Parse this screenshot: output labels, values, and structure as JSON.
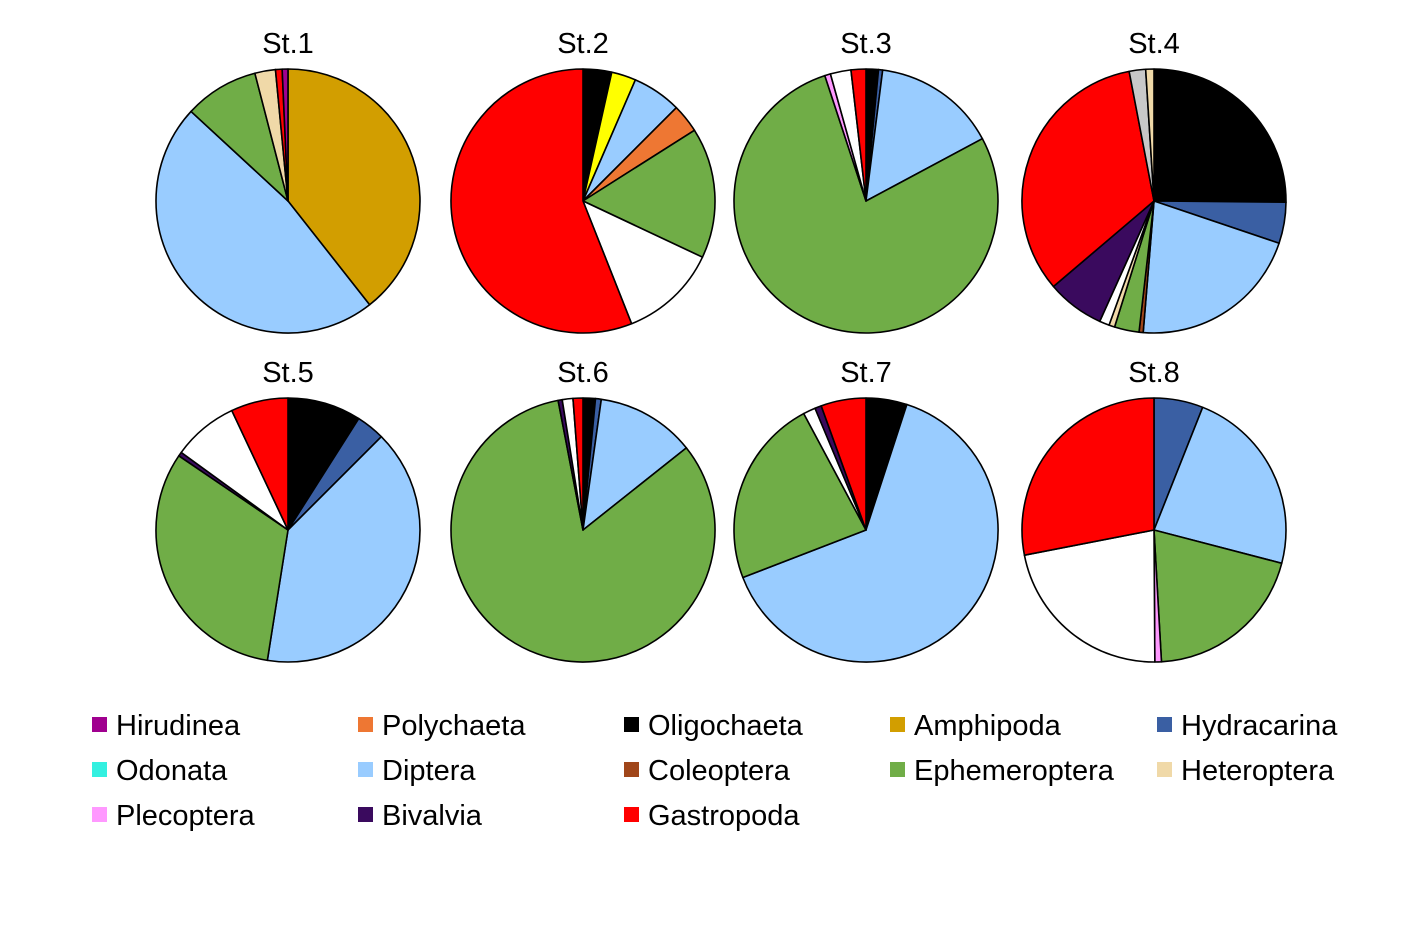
{
  "chart_data": {
    "type": "pie",
    "legend_placement": "bottom",
    "categories": [
      {
        "name": "Hirudinea",
        "color": "#a0008f"
      },
      {
        "name": "Polychaeta",
        "color": "#ee7733"
      },
      {
        "name": "Oligochaeta",
        "color": "#000000"
      },
      {
        "name": "Amphipoda",
        "color": "#d29e00"
      },
      {
        "name": "Hydracarina",
        "color": "#3a5fa3"
      },
      {
        "name": "Odonata",
        "color": "#33f0e0"
      },
      {
        "name": "Diptera",
        "color": "#99ccff"
      },
      {
        "name": "Coleoptera",
        "color": "#a0461a"
      },
      {
        "name": "Ephemeroptera",
        "color": "#70ad47"
      },
      {
        "name": "Heteroptera",
        "color": "#f0d9a8"
      },
      {
        "name": "Plecoptera",
        "color": "#ff99ff"
      },
      {
        "name": "Bivalvia",
        "color": "#3a0a5e"
      },
      {
        "name": "Gastropoda",
        "color": "#ff0000"
      }
    ],
    "other_slices": [
      {
        "key": "white",
        "color": "#ffffff"
      },
      {
        "key": "gray",
        "color": "#c8c8c8"
      }
    ],
    "pies": [
      {
        "title": "St.1",
        "slices": [
          {
            "cat": "Amphipoda",
            "value": 39
          },
          {
            "cat": "Diptera",
            "value": 47
          },
          {
            "cat": "Ephemeroptera",
            "value": 9
          },
          {
            "cat": "Heteroptera",
            "value": 2.5
          },
          {
            "cat": "Gastropoda",
            "value": 0.8
          },
          {
            "cat": "Hirudinea",
            "value": 0.7
          }
        ]
      },
      {
        "title": "St.2",
        "slices": [
          {
            "cat": "Oligochaeta",
            "value": 3.5
          },
          {
            "cat": "Yellow",
            "value": 3
          },
          {
            "cat": "Diptera",
            "value": 6
          },
          {
            "cat": "Polychaeta",
            "value": 3.5
          },
          {
            "cat": "Ephemeroptera",
            "value": 16
          },
          {
            "cat": "white",
            "value": 12
          },
          {
            "cat": "Gastropoda",
            "value": 56
          }
        ]
      },
      {
        "title": "St.3",
        "slices": [
          {
            "cat": "Oligochaeta",
            "value": 1.5
          },
          {
            "cat": "Hydracarina",
            "value": 0.5
          },
          {
            "cat": "Diptera",
            "value": 15
          },
          {
            "cat": "Ephemeroptera",
            "value": 77
          },
          {
            "cat": "Plecoptera",
            "value": 0.7
          },
          {
            "cat": "white",
            "value": 2.5
          },
          {
            "cat": "Gastropoda",
            "value": 1.8
          }
        ]
      },
      {
        "title": "St.4",
        "slices": [
          {
            "cat": "Oligochaeta",
            "value": 25
          },
          {
            "cat": "Hydracarina",
            "value": 5
          },
          {
            "cat": "Diptera",
            "value": 21
          },
          {
            "cat": "Coleoptera",
            "value": 0.5
          },
          {
            "cat": "Ephemeroptera",
            "value": 3
          },
          {
            "cat": "Heteroptera",
            "value": 0.7
          },
          {
            "cat": "white",
            "value": 1.2
          },
          {
            "cat": "Bivalvia",
            "value": 7
          },
          {
            "cat": "Gastropoda",
            "value": 33
          },
          {
            "cat": "gray",
            "value": 2
          },
          {
            "cat": "Heteroptera",
            "value": 1
          }
        ]
      },
      {
        "title": "St.5",
        "slices": [
          {
            "cat": "Oligochaeta",
            "value": 9
          },
          {
            "cat": "Hydracarina",
            "value": 3.5
          },
          {
            "cat": "Diptera",
            "value": 40
          },
          {
            "cat": "Ephemeroptera",
            "value": 32
          },
          {
            "cat": "Bivalvia",
            "value": 0.5
          },
          {
            "cat": "white",
            "value": 8
          },
          {
            "cat": "Gastropoda",
            "value": 7
          }
        ]
      },
      {
        "title": "St.6",
        "slices": [
          {
            "cat": "Oligochaeta",
            "value": 1.5
          },
          {
            "cat": "Hydracarina",
            "value": 0.7
          },
          {
            "cat": "Diptera",
            "value": 12
          },
          {
            "cat": "Ephemeroptera",
            "value": 82
          },
          {
            "cat": "Bivalvia",
            "value": 0.5
          },
          {
            "cat": "white",
            "value": 1.3
          },
          {
            "cat": "Gastropoda",
            "value": 1.2
          }
        ]
      },
      {
        "title": "St.7",
        "slices": [
          {
            "cat": "Oligochaeta",
            "value": 5
          },
          {
            "cat": "Diptera",
            "value": 64
          },
          {
            "cat": "Ephemeroptera",
            "value": 23
          },
          {
            "cat": "white",
            "value": 1.5
          },
          {
            "cat": "Bivalvia",
            "value": 0.8
          },
          {
            "cat": "Gastropoda",
            "value": 5.5
          }
        ]
      },
      {
        "title": "St.8",
        "slices": [
          {
            "cat": "Hydracarina",
            "value": 6
          },
          {
            "cat": "Diptera",
            "value": 23
          },
          {
            "cat": "Ephemeroptera",
            "value": 20
          },
          {
            "cat": "Plecoptera",
            "value": 0.8
          },
          {
            "cat": "white",
            "value": 22
          },
          {
            "cat": "Gastropoda",
            "value": 28
          }
        ]
      }
    ]
  }
}
